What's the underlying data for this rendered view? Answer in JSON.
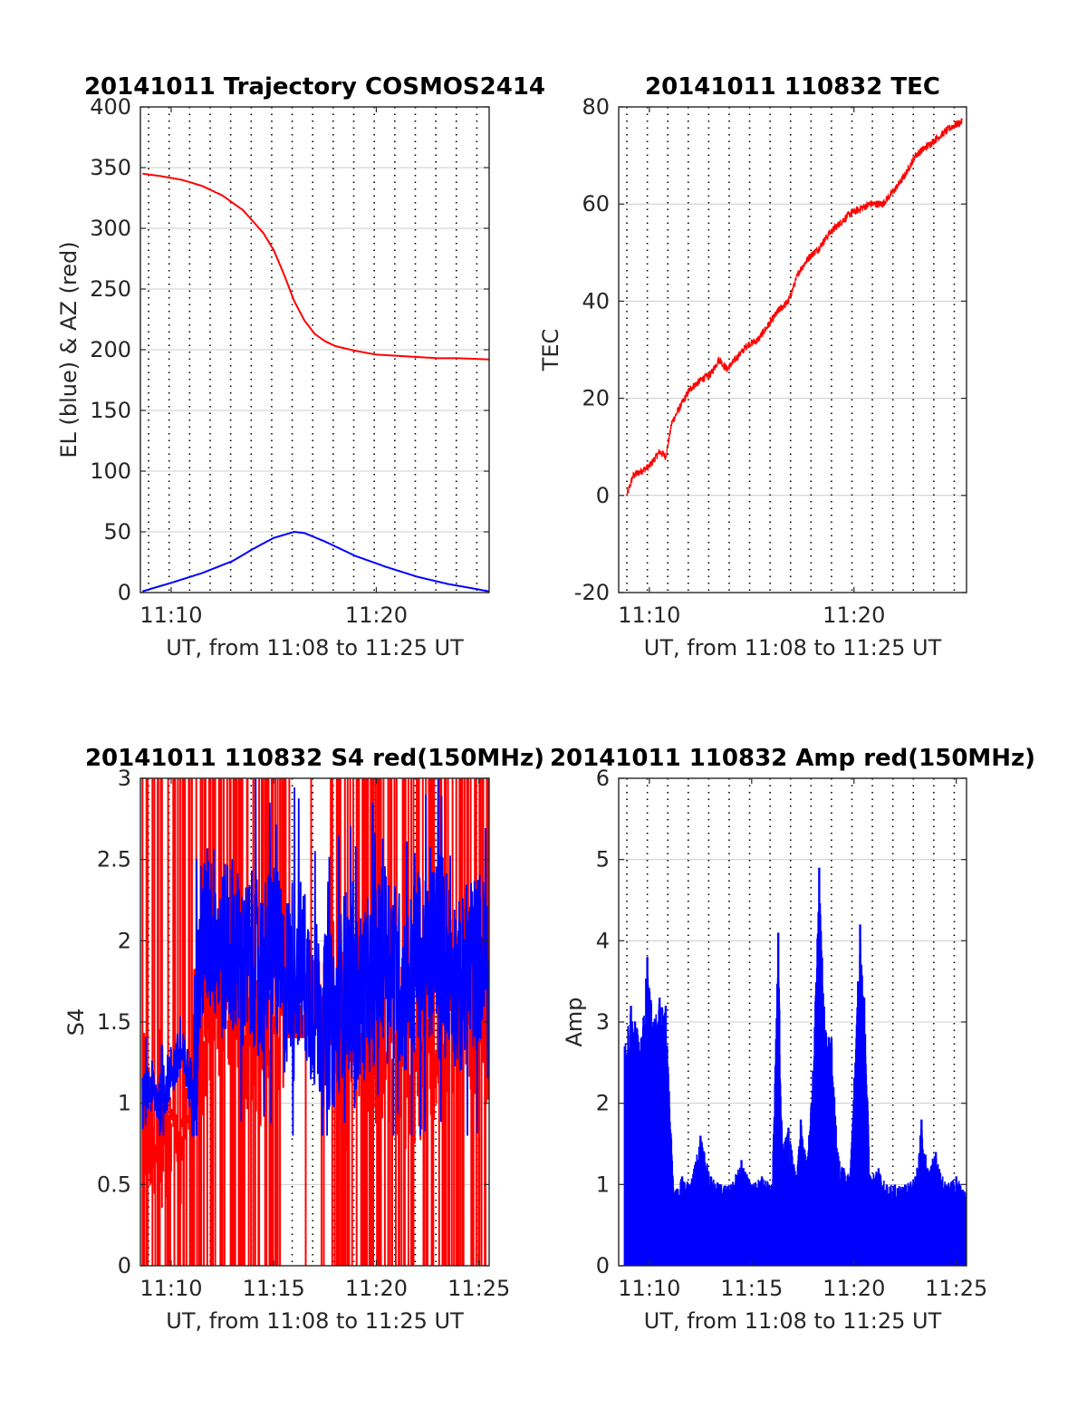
{
  "colors": {
    "red": "#ff0000",
    "blue": "#0000ff",
    "grid": "#cccccc",
    "axis": "#262626"
  },
  "chart_data": [
    {
      "type": "line",
      "title": "20141011 Trajectory COSMOS2414",
      "xlabel": "UT, from 11:08 to 11:25 UT",
      "ylabel": "EL (blue) & AZ (red)",
      "xlim": [
        668.5,
        685.5
      ],
      "ylim": [
        0,
        400
      ],
      "xticks": [
        670,
        680
      ],
      "xtick_labels": [
        "11:10",
        "11:20"
      ],
      "yticks": [
        0,
        50,
        100,
        150,
        200,
        250,
        300,
        350,
        400
      ],
      "ytick_labels": [
        "0",
        "50",
        "100",
        "150",
        "200",
        "250",
        "300",
        "350",
        "400"
      ],
      "dotted_vlines": [
        668.9,
        669.9,
        670.9,
        671.9,
        672.9,
        673.9,
        674.9,
        675.9,
        676.9,
        677.9,
        678.9,
        679.9,
        680.9,
        681.9,
        682.9,
        683.9,
        684.9
      ],
      "grid": true,
      "series": [
        {
          "color": "red",
          "x": [
            668.6,
            669.5,
            670.5,
            671.5,
            672.5,
            673.5,
            674.5,
            675.0,
            675.5,
            676.0,
            676.5,
            677.0,
            677.5,
            678.0,
            679.0,
            680.0,
            681.0,
            682.0,
            683.0,
            684.0,
            685.5
          ],
          "y": [
            345,
            343,
            340,
            335,
            327,
            315,
            296,
            282,
            262,
            240,
            224,
            213,
            207,
            203,
            199,
            196,
            195,
            194,
            193,
            193,
            192
          ]
        },
        {
          "color": "blue",
          "x": [
            668.6,
            670,
            671.5,
            673,
            674,
            675,
            676,
            676.5,
            677.5,
            679,
            680.5,
            682,
            683.5,
            685.5
          ],
          "y": [
            1,
            8,
            16,
            26,
            36,
            45,
            50,
            49,
            42,
            30,
            21,
            13,
            7,
            1
          ]
        }
      ]
    },
    {
      "type": "line",
      "title": "20141011 110832 TEC",
      "xlabel": "UT, from 11:08 to 11:25 UT",
      "ylabel": "TEC",
      "xlim": [
        668.5,
        685.5
      ],
      "ylim": [
        -20,
        80
      ],
      "xticks": [
        670,
        680
      ],
      "xtick_labels": [
        "11:10",
        "11:20"
      ],
      "yticks": [
        -20,
        0,
        20,
        40,
        60,
        80
      ],
      "ytick_labels": [
        "-20",
        "0",
        "20",
        "40",
        "60",
        "80"
      ],
      "dotted_vlines": [
        668.9,
        669.9,
        670.9,
        671.9,
        672.9,
        673.9,
        674.9,
        675.9,
        676.9,
        677.9,
        678.9,
        679.9,
        680.9,
        681.9,
        682.9,
        683.9,
        684.9
      ],
      "grid": true,
      "series": [
        {
          "color": "red",
          "x": [
            668.9,
            669.2,
            669.6,
            670.0,
            670.5,
            670.8,
            671.1,
            671.6,
            672.0,
            672.6,
            673.0,
            673.4,
            673.8,
            674.2,
            674.8,
            675.3,
            675.8,
            676.3,
            676.8,
            677.3,
            677.8,
            678.3,
            678.8,
            679.3,
            679.8,
            680.3,
            680.8,
            681.4,
            682.0,
            682.5,
            683.0,
            683.6,
            684.2,
            684.8,
            685.3
          ],
          "y": [
            0,
            4,
            5,
            6,
            9,
            8,
            15,
            19,
            22,
            24,
            25,
            28,
            26,
            28,
            31,
            32,
            35,
            38,
            40,
            46,
            49,
            51,
            54,
            56,
            58,
            59,
            60,
            60,
            63,
            66,
            70,
            72,
            74,
            76,
            77
          ]
        }
      ]
    },
    {
      "type": "line",
      "title": "20141011 110832 S4 red(150MHz)",
      "xlabel": "UT, from 11:08 to 11:25 UT",
      "ylabel": "S4",
      "xlim": [
        668.5,
        685.5
      ],
      "ylim": [
        0,
        3
      ],
      "xticks": [
        670,
        675,
        680,
        685
      ],
      "xtick_labels": [
        "11:10",
        "11:15",
        "11:20",
        "11:25"
      ],
      "yticks": [
        0,
        0.5,
        1,
        1.5,
        2,
        2.5,
        3
      ],
      "ytick_labels": [
        "0",
        "0.5",
        "1",
        "1.5",
        "2",
        "2.5",
        "3"
      ],
      "dotted_vlines": [
        668.9,
        669.9,
        670.9,
        671.9,
        672.9,
        673.9,
        674.9,
        675.9,
        676.9,
        677.9,
        678.9,
        679.9,
        680.9,
        681.9,
        682.9,
        683.9,
        684.9
      ],
      "grid": true,
      "series": [
        {
          "color": "red",
          "description": "dense vertical spikes between 0 and 3",
          "x": [
            668.6,
            669.5,
            670.5,
            671.5,
            672.5,
            673.5,
            674.5,
            675.5,
            676.5,
            677.5,
            678.5,
            679.5,
            680.5,
            681.5,
            682.5,
            683.5,
            684.5,
            685.5
          ],
          "y": [
            1.0,
            0.9,
            0.9,
            1.5,
            1.7,
            1.5,
            1.4,
            1.7,
            1.7,
            1.8,
            1.3,
            1.4,
            1.5,
            1.3,
            1.4,
            1.6,
            1.5,
            1.6
          ]
        },
        {
          "color": "blue",
          "x": [
            668.6,
            669.0,
            669.5,
            670.0,
            670.5,
            671.0,
            671.5,
            672.0,
            672.5,
            673.0,
            673.5,
            674.0,
            674.5,
            675.0,
            675.5,
            676.0,
            676.5,
            677.0,
            677.5,
            678.0,
            678.5,
            679.0,
            679.5,
            680.0,
            680.5,
            681.0,
            681.5,
            682.0,
            682.5,
            683.0,
            683.5,
            684.0,
            684.5,
            685.0,
            685.5
          ],
          "y": [
            1.0,
            1.1,
            1.0,
            1.2,
            1.3,
            1.1,
            2.0,
            2.1,
            1.9,
            2.0,
            1.8,
            1.9,
            1.8,
            2.0,
            1.7,
            1.9,
            1.8,
            1.6,
            1.5,
            1.5,
            1.8,
            1.6,
            1.7,
            1.8,
            2.0,
            1.8,
            1.7,
            1.9,
            1.8,
            2.1,
            1.9,
            1.7,
            1.8,
            1.9,
            1.8
          ]
        }
      ]
    },
    {
      "type": "line",
      "title": "20141011 110832 Amp red(150MHz)",
      "xlabel": "UT, from 11:08 to 11:25 UT",
      "ylabel": "Amp",
      "xlim": [
        668.5,
        685.5
      ],
      "ylim": [
        0,
        6
      ],
      "xticks": [
        670,
        675,
        680,
        685
      ],
      "xtick_labels": [
        "11:10",
        "11:15",
        "11:20",
        "11:25"
      ],
      "yticks": [
        0,
        1,
        2,
        3,
        4,
        5,
        6
      ],
      "ytick_labels": [
        "0",
        "1",
        "2",
        "3",
        "4",
        "5",
        "6"
      ],
      "dotted_vlines": [
        668.9,
        669.9,
        670.9,
        671.9,
        672.9,
        673.9,
        674.9,
        675.9,
        676.9,
        677.9,
        678.9,
        679.9,
        680.9,
        681.9,
        682.9,
        683.9,
        684.9
      ],
      "grid": true,
      "series": [
        {
          "color": "blue",
          "description": "filled amplitude envelope from 0",
          "x": [
            668.8,
            669.1,
            669.3,
            669.6,
            669.9,
            670.2,
            670.5,
            670.8,
            671.2,
            671.6,
            672.0,
            672.5,
            673.0,
            673.5,
            674.0,
            674.5,
            675.0,
            675.5,
            676.0,
            676.3,
            676.5,
            676.8,
            677.2,
            677.4,
            677.7,
            678.0,
            678.3,
            678.6,
            678.9,
            679.2,
            679.5,
            679.8,
            680.2,
            680.3,
            680.5,
            680.8,
            681.2,
            681.6,
            682.0,
            682.5,
            683.0,
            683.3,
            683.6,
            684.0,
            684.5,
            685.0,
            685.5
          ],
          "y": [
            2.7,
            3.2,
            3.0,
            2.8,
            3.8,
            3.0,
            3.3,
            3.2,
            0.9,
            1.1,
            1.0,
            1.6,
            1.1,
            1.0,
            1.0,
            1.3,
            1.0,
            1.1,
            1.0,
            4.1,
            1.5,
            1.7,
            1.1,
            1.8,
            1.3,
            2.4,
            4.9,
            2.9,
            2.8,
            1.4,
            1.2,
            1.1,
            3.5,
            4.2,
            3.3,
            1.1,
            1.2,
            1.0,
            1.0,
            1.0,
            1.1,
            1.8,
            1.2,
            1.4,
            1.0,
            1.1,
            0.9
          ]
        }
      ]
    }
  ]
}
